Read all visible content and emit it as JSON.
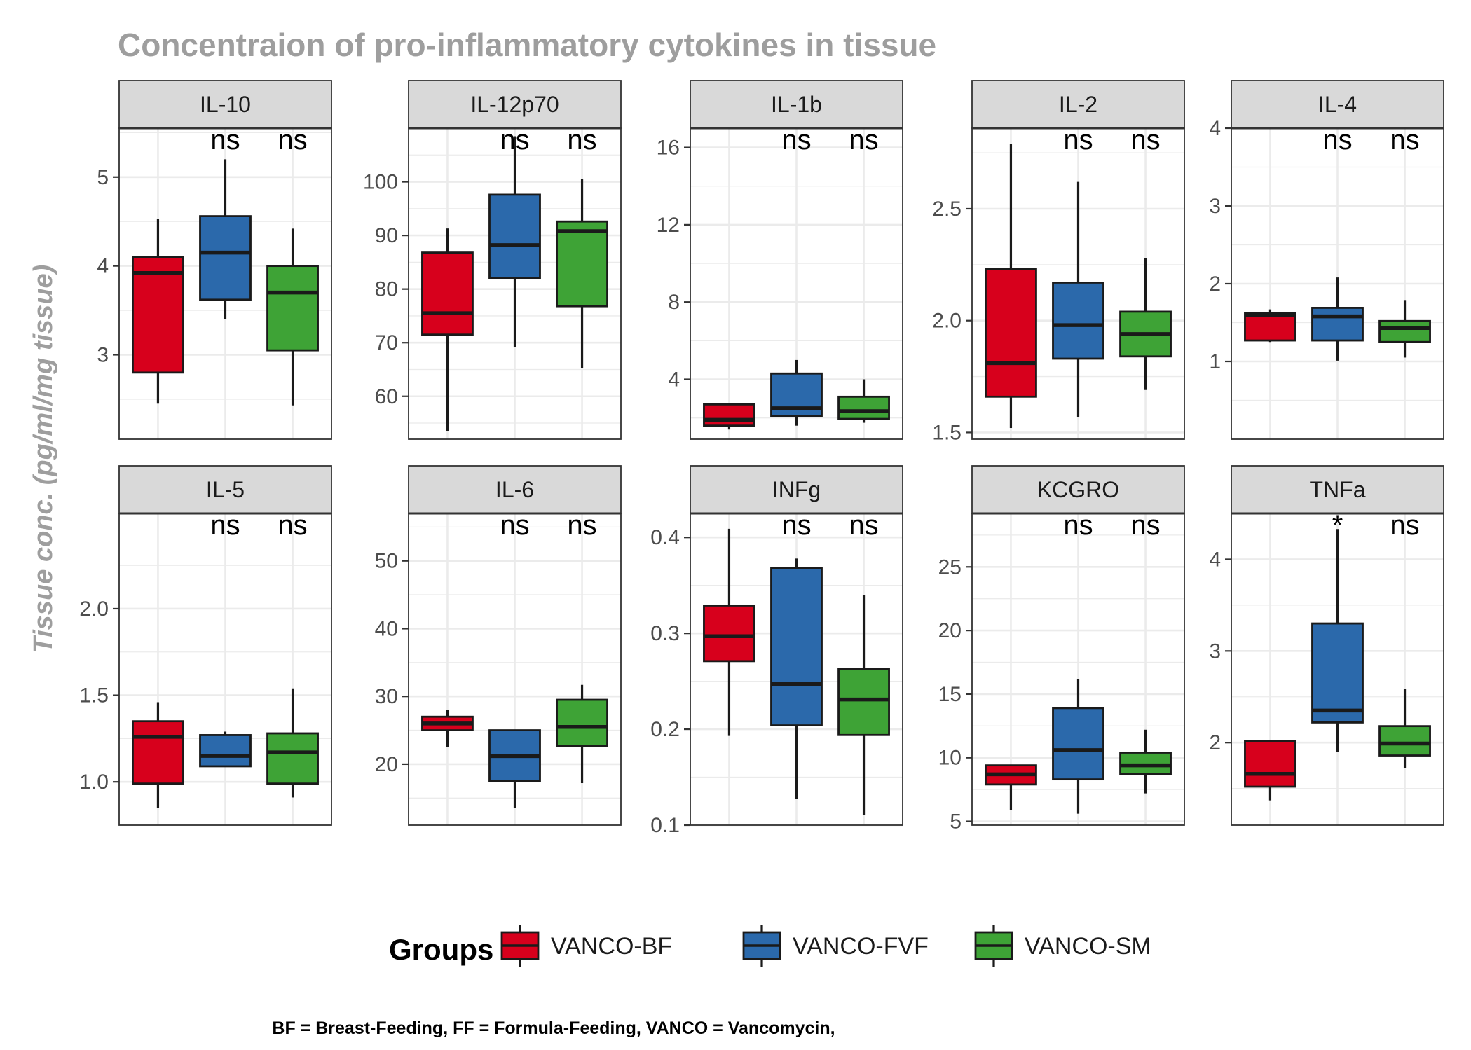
{
  "chart_data": {
    "type": "boxplot",
    "title": "Concentraion of pro-inflammatory cytokines in tissue",
    "ylabel": "Tissue conc. (pg/ml/mg tissue)",
    "xlabel": "",
    "legend": {
      "title": "Groups",
      "position": "bottom",
      "items": [
        {
          "name": "VANCO-BF",
          "color": "#d7001c"
        },
        {
          "name": "VANCO-FVF",
          "color": "#2b69ab"
        },
        {
          "name": "VANCO-SM",
          "color": "#3ea336"
        }
      ]
    },
    "caption": "BF = Breast-Feeding, FF = Formula-Feeding, VANCO = Vancomycin,",
    "grid": true,
    "facets": [
      {
        "name": "IL-10",
        "ylim": [
          2.05,
          5.55
        ],
        "ticks": [
          "3",
          "4",
          "5"
        ],
        "tick_values": [
          3,
          4,
          5
        ],
        "groups": [
          {
            "min": 2.45,
            "q1": 2.8,
            "median": 3.92,
            "q3": 4.1,
            "max": 4.53
          },
          {
            "min": 3.4,
            "q1": 3.62,
            "median": 4.15,
            "q3": 4.56,
            "max": 5.2
          },
          {
            "min": 2.43,
            "q1": 3.05,
            "median": 3.7,
            "q3": 4.0,
            "max": 4.42
          }
        ],
        "sig": [
          "ns",
          "ns"
        ]
      },
      {
        "name": "IL-12p70",
        "ylim": [
          52,
          110
        ],
        "ticks": [
          "60",
          "70",
          "80",
          "90",
          "100"
        ],
        "tick_values": [
          60,
          70,
          80,
          90,
          100
        ],
        "groups": [
          {
            "min": 53.5,
            "q1": 71.5,
            "median": 75.5,
            "q3": 86.8,
            "max": 91.3
          },
          {
            "min": 69.2,
            "q1": 82.0,
            "median": 88.2,
            "q3": 97.6,
            "max": 108.5
          },
          {
            "min": 65.2,
            "q1": 76.8,
            "median": 90.8,
            "q3": 92.6,
            "max": 100.5
          }
        ],
        "sig": [
          "ns",
          "ns"
        ]
      },
      {
        "name": "IL-1b",
        "ylim": [
          0.9,
          17.0
        ],
        "ticks": [
          "4",
          "8",
          "12",
          "16"
        ],
        "tick_values": [
          4,
          8,
          12,
          16
        ],
        "groups": [
          {
            "min": 1.4,
            "q1": 1.6,
            "median": 1.9,
            "q3": 2.7,
            "max": 2.7
          },
          {
            "min": 1.6,
            "q1": 2.1,
            "median": 2.5,
            "q3": 4.3,
            "max": 5.0
          },
          {
            "min": 1.75,
            "q1": 1.95,
            "median": 2.35,
            "q3": 3.1,
            "max": 4.0
          }
        ],
        "sig": [
          "ns",
          "ns"
        ]
      },
      {
        "name": "IL-2",
        "ylim": [
          1.47,
          2.86
        ],
        "ticks": [
          "1.5",
          "2.0",
          "2.5"
        ],
        "tick_values": [
          1.5,
          2.0,
          2.5
        ],
        "groups": [
          {
            "min": 1.52,
            "q1": 1.66,
            "median": 1.81,
            "q3": 2.23,
            "max": 2.79
          },
          {
            "min": 1.57,
            "q1": 1.83,
            "median": 1.98,
            "q3": 2.17,
            "max": 2.62
          },
          {
            "min": 1.69,
            "q1": 1.84,
            "median": 1.94,
            "q3": 2.04,
            "max": 2.28
          }
        ],
        "sig": [
          "ns",
          "ns"
        ]
      },
      {
        "name": "IL-4",
        "ylim": [
          0.0,
          4.0
        ],
        "ticks": [
          "1",
          "2",
          "3",
          "4"
        ],
        "tick_values": [
          1,
          2,
          3,
          4
        ],
        "groups": [
          {
            "min": 1.25,
            "q1": 1.27,
            "median": 1.6,
            "q3": 1.62,
            "max": 1.67
          },
          {
            "min": 1.01,
            "q1": 1.27,
            "median": 1.58,
            "q3": 1.69,
            "max": 2.08
          },
          {
            "min": 1.05,
            "q1": 1.25,
            "median": 1.43,
            "q3": 1.52,
            "max": 1.79
          }
        ],
        "sig": [
          "ns",
          "ns"
        ]
      },
      {
        "name": "IL-5",
        "ylim": [
          0.75,
          2.55
        ],
        "ticks": [
          "1.0",
          "1.5",
          "2.0"
        ],
        "tick_values": [
          1.0,
          1.5,
          2.0
        ],
        "groups": [
          {
            "min": 0.85,
            "q1": 0.99,
            "median": 1.26,
            "q3": 1.35,
            "max": 1.46
          },
          {
            "min": 1.09,
            "q1": 1.09,
            "median": 1.15,
            "q3": 1.27,
            "max": 1.29
          },
          {
            "min": 0.91,
            "q1": 0.99,
            "median": 1.17,
            "q3": 1.28,
            "max": 1.54
          }
        ],
        "sig": [
          "ns",
          "ns"
        ]
      },
      {
        "name": "IL-6",
        "ylim": [
          11,
          57
        ],
        "ticks": [
          "20",
          "30",
          "40",
          "50"
        ],
        "tick_values": [
          20,
          30,
          40,
          50
        ],
        "groups": [
          {
            "min": 22.5,
            "q1": 25.0,
            "median": 26.0,
            "q3": 27.0,
            "max": 28.0
          },
          {
            "min": 13.5,
            "q1": 17.5,
            "median": 21.2,
            "q3": 25.0,
            "max": 25.0
          },
          {
            "min": 17.2,
            "q1": 22.7,
            "median": 25.5,
            "q3": 29.5,
            "max": 31.7
          }
        ],
        "sig": [
          "ns",
          "ns"
        ]
      },
      {
        "name": "INFg",
        "ylim": [
          0.1,
          0.425
        ],
        "ticks": [
          "0.1",
          "0.2",
          "0.3",
          "0.4"
        ],
        "tick_values": [
          0.1,
          0.2,
          0.3,
          0.4
        ],
        "groups": [
          {
            "min": 0.193,
            "q1": 0.271,
            "median": 0.297,
            "q3": 0.329,
            "max": 0.409
          },
          {
            "min": 0.127,
            "q1": 0.204,
            "median": 0.247,
            "q3": 0.368,
            "max": 0.378
          },
          {
            "min": 0.111,
            "q1": 0.194,
            "median": 0.231,
            "q3": 0.263,
            "max": 0.34
          }
        ],
        "sig": [
          "ns",
          "ns"
        ]
      },
      {
        "name": "KCGRO",
        "ylim": [
          4.7,
          29.2
        ],
        "ticks": [
          "5",
          "10",
          "15",
          "20",
          "25"
        ],
        "tick_values": [
          5,
          10,
          15,
          20,
          25
        ],
        "groups": [
          {
            "min": 5.9,
            "q1": 7.9,
            "median": 8.7,
            "q3": 9.4,
            "max": 9.4
          },
          {
            "min": 5.6,
            "q1": 8.3,
            "median": 10.6,
            "q3": 13.9,
            "max": 16.2
          },
          {
            "min": 7.2,
            "q1": 8.7,
            "median": 9.4,
            "q3": 10.4,
            "max": 12.2
          }
        ],
        "sig": [
          "ns",
          "ns"
        ]
      },
      {
        "name": "TNFa",
        "ylim": [
          1.1,
          4.5
        ],
        "ticks": [
          "2",
          "3",
          "4"
        ],
        "tick_values": [
          2,
          3,
          4
        ],
        "groups": [
          {
            "min": 1.37,
            "q1": 1.52,
            "median": 1.66,
            "q3": 2.02,
            "max": 2.02
          },
          {
            "min": 1.9,
            "q1": 2.22,
            "median": 2.35,
            "q3": 3.3,
            "max": 4.33
          },
          {
            "min": 1.72,
            "q1": 1.86,
            "median": 1.99,
            "q3": 2.18,
            "max": 2.59
          }
        ],
        "sig": [
          "*",
          "ns"
        ]
      }
    ]
  }
}
